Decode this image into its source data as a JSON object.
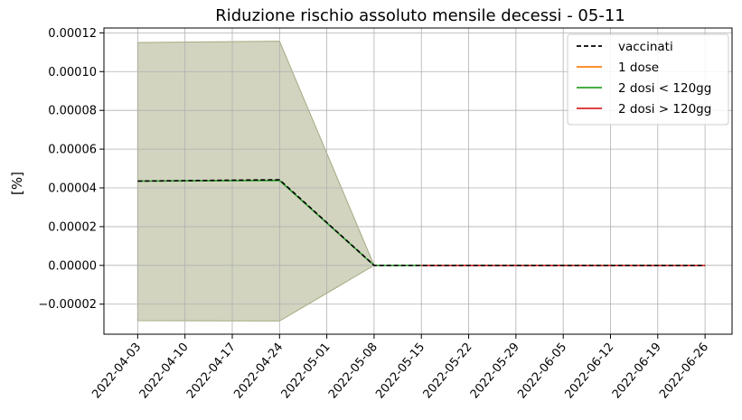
{
  "chart_data": {
    "type": "line",
    "title": "Riduzione rischio assoluto mensile decessi - 05-11",
    "xlabel": "",
    "ylabel": "[%]",
    "x_ticks": [
      "2022-04-03",
      "2022-04-10",
      "2022-04-17",
      "2022-04-24",
      "2022-05-01",
      "2022-05-08",
      "2022-05-15",
      "2022-05-22",
      "2022-05-29",
      "2022-06-05",
      "2022-06-12",
      "2022-06-19",
      "2022-06-26"
    ],
    "y_ticks": [
      "−0.00002",
      "0.00000",
      "0.00002",
      "0.00004",
      "0.00006",
      "0.00008",
      "0.00010",
      "0.00012"
    ],
    "x_range": [
      "2022-03-29",
      "2022-06-30"
    ],
    "ylim": [
      -3.55e-05,
      0.0001225
    ],
    "grid": true,
    "legend_position": "top-right",
    "band": {
      "x": [
        "2022-04-03",
        "2022-04-24",
        "2022-05-08"
      ],
      "upper": [
        0.000115,
        0.0001157,
        0.0
      ],
      "lower": [
        -2.85e-05,
        -2.87e-05,
        0.0
      ],
      "color": "#a5aa7f"
    },
    "series": [
      {
        "name": "vaccinati",
        "color": "#000000",
        "dash": true,
        "x": [
          "2022-04-03",
          "2022-04-24",
          "2022-05-08",
          "2022-05-15",
          "2022-06-26"
        ],
        "y": [
          4.35e-05,
          4.42e-05,
          0.0,
          0.0,
          0.0
        ]
      },
      {
        "name": "1 dose",
        "color": "#ff7f0e",
        "dash": false,
        "x": [
          "2022-05-15",
          "2022-06-26"
        ],
        "y": [
          0.0,
          0.0
        ]
      },
      {
        "name": "2 dosi < 120gg",
        "color": "#2ca02c",
        "dash": false,
        "x": [
          "2022-04-03",
          "2022-04-24",
          "2022-05-08",
          "2022-05-15"
        ],
        "y": [
          4.35e-05,
          4.38e-05,
          0.0,
          0.0
        ]
      },
      {
        "name": "2 dosi > 120gg",
        "color": "#d62728",
        "dash": false,
        "x": [
          "2022-05-15",
          "2022-06-26"
        ],
        "y": [
          0.0,
          0.0
        ]
      }
    ]
  }
}
